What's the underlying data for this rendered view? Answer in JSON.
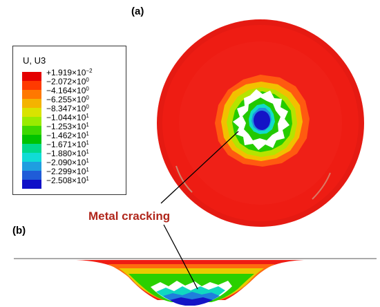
{
  "panel_a_label": "(a)",
  "panel_b_label": "(b)",
  "legend": {
    "title": "U, U3",
    "entries": [
      {
        "sign": "+",
        "mantissa": "1.919",
        "exp": "-2",
        "color": "#e40000"
      },
      {
        "sign": "−",
        "mantissa": "2.072",
        "exp": "0",
        "color": "#ff3a00"
      },
      {
        "sign": "−",
        "mantissa": "4.164",
        "exp": "0",
        "color": "#ff7800"
      },
      {
        "sign": "−",
        "mantissa": "6.255",
        "exp": "0",
        "color": "#f4b300"
      },
      {
        "sign": "−",
        "mantissa": "8.347",
        "exp": "0",
        "color": "#d9e300"
      },
      {
        "sign": "−",
        "mantissa": "1.044",
        "exp": "1",
        "color": "#9aeb00"
      },
      {
        "sign": "−",
        "mantissa": "1.253",
        "exp": "1",
        "color": "#3ed800"
      },
      {
        "sign": "−",
        "mantissa": "1.462",
        "exp": "1",
        "color": "#00c300"
      },
      {
        "sign": "−",
        "mantissa": "1.671",
        "exp": "1",
        "color": "#00d98a"
      },
      {
        "sign": "−",
        "mantissa": "1.880",
        "exp": "1",
        "color": "#10dcd6"
      },
      {
        "sign": "−",
        "mantissa": "2.090",
        "exp": "1",
        "color": "#1f9ee0"
      },
      {
        "sign": "−",
        "mantissa": "2.299",
        "exp": "1",
        "color": "#1f5cd8"
      },
      {
        "sign": "−",
        "mantissa": "2.508",
        "exp": "1",
        "color": "#1010c8"
      }
    ]
  },
  "callout": "Metal cracking"
}
